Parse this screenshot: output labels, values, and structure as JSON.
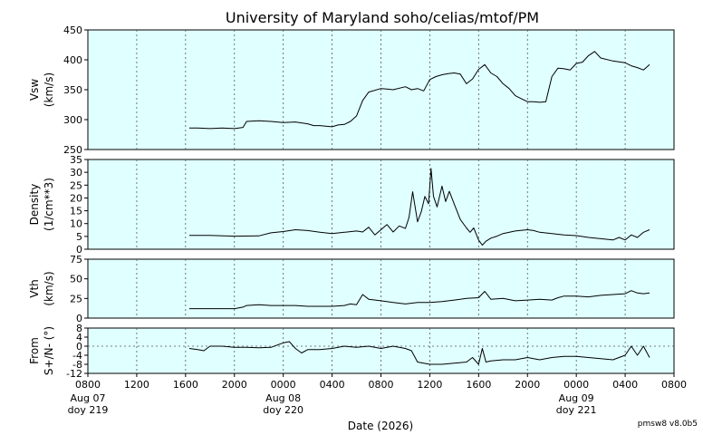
{
  "title": "University of Maryland  soho/celias/mtof/PM",
  "xlabel": "Date (2026)",
  "version": "pmsw8 v8.0b5",
  "x_ticks": [
    {
      "hour": 8,
      "label": "0800",
      "date": "Aug 07",
      "doy": "doy 219"
    },
    {
      "hour": 12,
      "label": "1200"
    },
    {
      "hour": 16,
      "label": "1600"
    },
    {
      "hour": 20,
      "label": "2000"
    },
    {
      "hour": 24,
      "label": "0000",
      "date": "Aug 08",
      "doy": "doy 220"
    },
    {
      "hour": 28,
      "label": "0400"
    },
    {
      "hour": 32,
      "label": "0800"
    },
    {
      "hour": 36,
      "label": "1200"
    },
    {
      "hour": 40,
      "label": "1600"
    },
    {
      "hour": 44,
      "label": "2000"
    },
    {
      "hour": 48,
      "label": "0000",
      "date": "Aug 09",
      "doy": "doy 221"
    },
    {
      "hour": 52,
      "label": "0400"
    },
    {
      "hour": 56,
      "label": "0800"
    }
  ],
  "chart_data": [
    {
      "type": "line",
      "ylabel": [
        "Vsw",
        "(km/s)"
      ],
      "ylim": [
        250,
        450
      ],
      "yticks": [
        250,
        300,
        350,
        400,
        450
      ],
      "x_units": "hours from 2026-08-07 00:00 UT",
      "x": [
        16.3,
        17,
        18,
        19,
        20,
        20.7,
        21,
        22,
        23,
        24,
        25,
        26,
        26.5,
        27,
        28,
        28.5,
        29,
        29.5,
        30,
        30.5,
        31,
        32,
        32.5,
        33,
        34,
        34.5,
        35,
        35.5,
        36,
        36.5,
        37,
        37.5,
        38,
        38.5,
        39,
        39.5,
        40,
        40.5,
        41,
        41.5,
        42,
        42.5,
        43,
        43.5,
        44,
        44.5,
        45,
        45.5,
        46,
        46.5,
        47,
        47.5,
        48,
        48.5,
        49,
        49.5,
        50,
        51,
        52,
        52.5,
        53,
        53.5,
        54
      ],
      "values": [
        286,
        286,
        285,
        286,
        285,
        287,
        297,
        298,
        297,
        295,
        296,
        293,
        290,
        290,
        288,
        291,
        292,
        297,
        306,
        332,
        346,
        352,
        351,
        350,
        355,
        350,
        352,
        348,
        367,
        372,
        375,
        377,
        378,
        376,
        360,
        368,
        384,
        392,
        378,
        372,
        360,
        352,
        340,
        335,
        330,
        330,
        329,
        330,
        372,
        386,
        385,
        383,
        394,
        396,
        407,
        414,
        403,
        398,
        395,
        390,
        387,
        383,
        392
      ]
    },
    {
      "type": "line",
      "ylabel": [
        "Density",
        "(1/cm**3)"
      ],
      "ylim": [
        0,
        35
      ],
      "yticks": [
        0,
        5,
        10,
        15,
        20,
        25,
        30,
        35
      ],
      "x_units": "hours from 2026-08-07 00:00 UT",
      "x": [
        16.3,
        18,
        20,
        22,
        23,
        24,
        25,
        26,
        27,
        28,
        29,
        30,
        30.5,
        31,
        31.5,
        32,
        32.5,
        33,
        33.5,
        34,
        34.3,
        34.6,
        35,
        35.3,
        35.6,
        35.9,
        36.1,
        36.3,
        36.6,
        37,
        37.3,
        37.6,
        38,
        38.5,
        39,
        39.3,
        39.6,
        40,
        40.3,
        40.6,
        41,
        41.5,
        42,
        43,
        44,
        44.5,
        45,
        46,
        47,
        48,
        49,
        50,
        51,
        51.5,
        52,
        52.5,
        53,
        53.5,
        54
      ],
      "values": [
        5.4,
        5.4,
        5.1,
        5.2,
        6.4,
        6.9,
        7.6,
        7.3,
        6.6,
        6.1,
        6.6,
        7.1,
        6.7,
        8.6,
        5.6,
        7.6,
        9.6,
        6.7,
        9.1,
        8.1,
        12.4,
        22.4,
        10.7,
        14.6,
        20.6,
        17.7,
        31.5,
        20.6,
        16.5,
        24.6,
        18.6,
        22.6,
        17.6,
        11.6,
        8.3,
        6.6,
        8.3,
        3.6,
        1.6,
        3.1,
        4.3,
        5.1,
        6.1,
        7.1,
        7.6,
        7.3,
        6.6,
        6.1,
        5.6,
        5.3,
        4.6,
        4.1,
        3.6,
        4.6,
        3.6,
        5.6,
        4.6,
        6.6,
        7.6
      ]
    },
    {
      "type": "line",
      "ylabel": [
        "Vth",
        "(km/s)"
      ],
      "ylim": [
        0,
        75
      ],
      "yticks": [
        0,
        25,
        50,
        75
      ],
      "x_units": "hours from 2026-08-07 00:00 UT",
      "x": [
        16.3,
        18,
        20,
        20.7,
        21,
        22,
        23,
        24,
        25,
        26,
        27,
        28,
        29,
        29.5,
        30,
        30.5,
        31,
        32,
        33,
        34,
        35,
        36,
        37,
        38,
        39,
        40,
        40.5,
        41,
        42,
        43,
        44,
        45,
        46,
        46.5,
        47,
        48,
        49,
        50,
        51,
        52,
        52.5,
        53,
        53.5,
        54
      ],
      "values": [
        12,
        12,
        12,
        14,
        16,
        17,
        16,
        16,
        16,
        15,
        15,
        15,
        16,
        18,
        17,
        30,
        24,
        22,
        20,
        18,
        20,
        20,
        21,
        23,
        25,
        26,
        34,
        24,
        25,
        22,
        23,
        24,
        23,
        26,
        28,
        28,
        27,
        29,
        30,
        31,
        35,
        32,
        31,
        32
      ]
    },
    {
      "type": "line",
      "ylabel": [
        "From",
        "S+/N- (°)"
      ],
      "ylim": [
        -12,
        8
      ],
      "yticks": [
        -12,
        -8,
        -4,
        0,
        4,
        8
      ],
      "x_units": "hours from 2026-08-07 00:00 UT",
      "x": [
        16.3,
        17,
        17.5,
        18,
        19,
        20,
        21,
        22,
        23,
        24,
        24.5,
        25,
        25.5,
        26,
        26.5,
        27,
        28,
        29,
        30,
        31,
        32,
        33,
        34,
        34.5,
        35,
        36,
        37,
        38,
        39,
        39.5,
        40,
        40.3,
        40.6,
        41,
        42,
        43,
        44,
        45,
        46,
        47,
        48,
        49,
        50,
        51,
        51.5,
        52,
        52.5,
        53,
        53.5,
        54
      ],
      "values": [
        -1,
        -1.5,
        -2,
        0,
        0,
        -0.5,
        -0.5,
        -0.7,
        -0.5,
        1.5,
        2,
        -1,
        -3,
        -1.5,
        -1.5,
        -1.5,
        -1,
        0,
        -0.5,
        0,
        -1,
        0,
        -1,
        -2,
        -7,
        -8,
        -8,
        -7.5,
        -7,
        -5,
        -8,
        -1,
        -7,
        -6.5,
        -6,
        -6,
        -5,
        -6,
        -5,
        -4.5,
        -4.5,
        -5,
        -5.5,
        -6,
        -5,
        -4,
        0,
        -4,
        0,
        -5
      ]
    }
  ]
}
